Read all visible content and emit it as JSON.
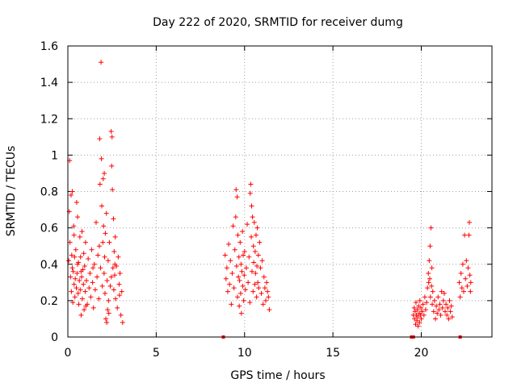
{
  "chart_data": {
    "type": "scatter",
    "title": "Day 222 of 2020, SRMTID for receiver dumg",
    "xlabel": "GPS time / hours",
    "ylabel": "SRMTID / TECUs",
    "xlim": [
      0,
      24
    ],
    "ylim": [
      0,
      1.6
    ],
    "xticks": [
      0,
      5,
      10,
      15,
      20
    ],
    "xtick_labels": [
      "0",
      "5",
      "10",
      "15",
      "20"
    ],
    "yticks": [
      0,
      0.2,
      0.4,
      0.6,
      0.8,
      1,
      1.2,
      1.4,
      1.6
    ],
    "ytick_labels": [
      "0",
      "0.2",
      "0.4",
      "0.6",
      "0.8",
      "1",
      "1.2",
      "1.4",
      "1.6"
    ],
    "grid": true,
    "marker": "+",
    "color": "#ff0000",
    "series": [
      {
        "name": "SRMTID",
        "points": [
          [
            0.05,
            0.42
          ],
          [
            0.08,
            0.69
          ],
          [
            0.1,
            0.97
          ],
          [
            0.12,
            0.52
          ],
          [
            0.15,
            0.33
          ],
          [
            0.18,
            0.78
          ],
          [
            0.2,
            0.25
          ],
          [
            0.22,
            0.45
          ],
          [
            0.25,
            0.38
          ],
          [
            0.28,
            0.19
          ],
          [
            0.3,
            0.36
          ],
          [
            0.33,
            0.61
          ],
          [
            0.35,
            0.29
          ],
          [
            0.38,
            0.44
          ],
          [
            0.4,
            0.22
          ],
          [
            0.42,
            0.32
          ],
          [
            0.45,
            0.48
          ],
          [
            0.48,
            0.27
          ],
          [
            0.5,
            0.74
          ],
          [
            0.52,
            0.35
          ],
          [
            0.55,
            0.66
          ],
          [
            0.58,
            0.24
          ],
          [
            0.6,
            0.41
          ],
          [
            0.62,
            0.18
          ],
          [
            0.65,
            0.31
          ],
          [
            0.68,
            0.55
          ],
          [
            0.7,
            0.26
          ],
          [
            0.72,
            0.44
          ],
          [
            0.75,
            0.12
          ],
          [
            0.78,
            0.33
          ],
          [
            0.8,
            0.58
          ],
          [
            0.82,
            0.21
          ],
          [
            0.85,
            0.37
          ],
          [
            0.88,
            0.29
          ],
          [
            0.9,
            0.46
          ],
          [
            0.92,
            0.15
          ],
          [
            0.95,
            0.39
          ],
          [
            0.98,
            0.25
          ],
          [
            1.0,
            0.52
          ],
          [
            1.05,
            0.31
          ],
          [
            1.1,
            0.18
          ],
          [
            1.15,
            0.43
          ],
          [
            1.2,
            0.27
          ],
          [
            1.25,
            0.35
          ],
          [
            1.3,
            0.22
          ],
          [
            1.35,
            0.48
          ],
          [
            1.4,
            0.3
          ],
          [
            1.45,
            0.16
          ],
          [
            1.5,
            0.4
          ],
          [
            1.55,
            0.26
          ],
          [
            1.6,
            0.63
          ],
          [
            1.65,
            0.33
          ],
          [
            1.7,
            0.45
          ],
          [
            1.75,
            0.21
          ],
          [
            1.8,
            1.09
          ],
          [
            1.82,
            0.84
          ],
          [
            1.85,
            0.38
          ],
          [
            1.88,
            1.51
          ],
          [
            1.9,
            0.98
          ],
          [
            1.92,
            0.72
          ],
          [
            1.95,
            0.28
          ],
          [
            1.98,
            0.52
          ],
          [
            2.0,
            0.87
          ],
          [
            2.02,
            0.61
          ],
          [
            2.05,
            0.35
          ],
          [
            2.08,
            0.44
          ],
          [
            2.1,
            0.24
          ],
          [
            2.12,
            0.57
          ],
          [
            2.15,
            0.1
          ],
          [
            2.18,
            0.68
          ],
          [
            2.2,
            0.08
          ],
          [
            2.22,
            0.31
          ],
          [
            2.25,
            0.15
          ],
          [
            2.28,
            0.42
          ],
          [
            2.3,
            0.2
          ],
          [
            2.35,
            0.52
          ],
          [
            2.4,
            0.28
          ],
          [
            2.45,
            1.13
          ],
          [
            2.48,
            0.94
          ],
          [
            2.5,
            1.1
          ],
          [
            2.52,
            0.81
          ],
          [
            2.55,
            0.38
          ],
          [
            2.58,
            0.65
          ],
          [
            2.6,
            0.26
          ],
          [
            2.62,
            0.47
          ],
          [
            2.65,
            0.34
          ],
          [
            2.68,
            0.55
          ],
          [
            2.7,
            0.21
          ],
          [
            2.75,
            0.39
          ],
          [
            2.8,
            0.16
          ],
          [
            2.85,
            0.44
          ],
          [
            2.9,
            0.29
          ],
          [
            2.95,
            0.35
          ],
          [
            3.0,
            0.12
          ],
          [
            3.05,
            0.25
          ],
          [
            3.1,
            0.08
          ],
          [
            0.25,
            0.8
          ],
          [
            0.35,
            0.56
          ],
          [
            0.55,
            0.4
          ],
          [
            0.75,
            0.36
          ],
          [
            1.02,
            0.17
          ],
          [
            1.42,
            0.38
          ],
          [
            1.78,
            0.5
          ],
          [
            2.06,
            0.9
          ],
          [
            2.32,
            0.13
          ],
          [
            2.46,
            0.33
          ],
          [
            2.66,
            0.4
          ],
          [
            2.92,
            0.23
          ],
          [
            8.9,
            0.45
          ],
          [
            8.95,
            0.32
          ],
          [
            9.0,
            0.38
          ],
          [
            9.05,
            0.25
          ],
          [
            9.1,
            0.51
          ],
          [
            9.15,
            0.29
          ],
          [
            9.2,
            0.42
          ],
          [
            9.25,
            0.18
          ],
          [
            9.3,
            0.35
          ],
          [
            9.35,
            0.61
          ],
          [
            9.4,
            0.27
          ],
          [
            9.45,
            0.48
          ],
          [
            9.5,
            0.66
          ],
          [
            9.52,
            0.81
          ],
          [
            9.55,
            0.39
          ],
          [
            9.58,
            0.77
          ],
          [
            9.6,
            0.22
          ],
          [
            9.62,
            0.56
          ],
          [
            9.65,
            0.33
          ],
          [
            9.68,
            0.44
          ],
          [
            9.7,
            0.17
          ],
          [
            9.72,
            0.31
          ],
          [
            9.75,
            0.52
          ],
          [
            9.78,
            0.24
          ],
          [
            9.8,
            0.4
          ],
          [
            9.82,
            0.13
          ],
          [
            9.85,
            0.36
          ],
          [
            9.88,
            0.58
          ],
          [
            9.9,
            0.28
          ],
          [
            9.92,
            0.45
          ],
          [
            9.95,
            0.2
          ],
          [
            9.98,
            0.34
          ],
          [
            10.0,
            0.47
          ],
          [
            10.05,
            0.26
          ],
          [
            10.1,
            0.38
          ],
          [
            10.15,
            0.62
          ],
          [
            10.2,
            0.3
          ],
          [
            10.25,
            0.44
          ],
          [
            10.3,
            0.19
          ],
          [
            10.32,
            0.79
          ],
          [
            10.35,
            0.84
          ],
          [
            10.38,
            0.55
          ],
          [
            10.4,
            0.72
          ],
          [
            10.42,
            0.36
          ],
          [
            10.45,
            0.66
          ],
          [
            10.48,
            0.25
          ],
          [
            10.5,
            0.5
          ],
          [
            10.52,
            0.41
          ],
          [
            10.55,
            0.63
          ],
          [
            10.58,
            0.29
          ],
          [
            10.6,
            0.47
          ],
          [
            10.62,
            0.35
          ],
          [
            10.65,
            0.56
          ],
          [
            10.68,
            0.22
          ],
          [
            10.7,
            0.39
          ],
          [
            10.72,
            0.6
          ],
          [
            10.75,
            0.3
          ],
          [
            10.78,
            0.45
          ],
          [
            10.8,
            0.27
          ],
          [
            10.85,
            0.52
          ],
          [
            10.9,
            0.38
          ],
          [
            10.95,
            0.24
          ],
          [
            11.0,
            0.42
          ],
          [
            11.05,
            0.18
          ],
          [
            11.1,
            0.33
          ],
          [
            11.15,
            0.27
          ],
          [
            11.2,
            0.2
          ],
          [
            11.25,
            0.3
          ],
          [
            11.3,
            0.25
          ],
          [
            11.35,
            0.22
          ],
          [
            11.4,
            0.15
          ],
          [
            19.55,
            0.12
          ],
          [
            19.6,
            0.16
          ],
          [
            19.62,
            0.1
          ],
          [
            19.65,
            0.14
          ],
          [
            19.68,
            0.07
          ],
          [
            19.7,
            0.19
          ],
          [
            19.72,
            0.12
          ],
          [
            19.75,
            0.09
          ],
          [
            19.78,
            0.15
          ],
          [
            19.8,
            0.11
          ],
          [
            19.82,
            0.06
          ],
          [
            19.85,
            0.17
          ],
          [
            19.88,
            0.13
          ],
          [
            19.9,
            0.08
          ],
          [
            19.92,
            0.2
          ],
          [
            19.95,
            0.12
          ],
          [
            19.98,
            0.16
          ],
          [
            20.0,
            0.1
          ],
          [
            20.05,
            0.14
          ],
          [
            20.1,
            0.18
          ],
          [
            20.15,
            0.12
          ],
          [
            20.2,
            0.22
          ],
          [
            20.25,
            0.15
          ],
          [
            20.3,
            0.19
          ],
          [
            20.35,
            0.27
          ],
          [
            20.4,
            0.35
          ],
          [
            20.42,
            0.3
          ],
          [
            20.45,
            0.42
          ],
          [
            20.48,
            0.32
          ],
          [
            20.5,
            0.5
          ],
          [
            20.52,
            0.22
          ],
          [
            20.55,
            0.6
          ],
          [
            20.58,
            0.28
          ],
          [
            20.6,
            0.38
          ],
          [
            20.62,
            0.18
          ],
          [
            20.65,
            0.25
          ],
          [
            20.7,
            0.14
          ],
          [
            20.75,
            0.2
          ],
          [
            20.8,
            0.1
          ],
          [
            20.85,
            0.17
          ],
          [
            20.9,
            0.13
          ],
          [
            20.95,
            0.22
          ],
          [
            21.0,
            0.15
          ],
          [
            21.05,
            0.18
          ],
          [
            21.1,
            0.12
          ],
          [
            21.15,
            0.25
          ],
          [
            21.2,
            0.16
          ],
          [
            21.25,
            0.2
          ],
          [
            21.3,
            0.24
          ],
          [
            21.35,
            0.14
          ],
          [
            21.4,
            0.18
          ],
          [
            21.45,
            0.12
          ],
          [
            21.5,
            0.16
          ],
          [
            21.55,
            0.1
          ],
          [
            21.6,
            0.2
          ],
          [
            21.65,
            0.14
          ],
          [
            21.7,
            0.17
          ],
          [
            21.75,
            0.11
          ],
          [
            22.15,
            0.3
          ],
          [
            22.2,
            0.22
          ],
          [
            22.25,
            0.35
          ],
          [
            22.3,
            0.27
          ],
          [
            22.35,
            0.4
          ],
          [
            22.4,
            0.25
          ],
          [
            22.45,
            0.56
          ],
          [
            22.5,
            0.32
          ],
          [
            22.55,
            0.42
          ],
          [
            22.6,
            0.28
          ],
          [
            22.65,
            0.38
          ],
          [
            22.7,
            0.56
          ],
          [
            22.72,
            0.63
          ],
          [
            22.75,
            0.34
          ],
          [
            22.78,
            0.25
          ],
          [
            22.8,
            0.3
          ]
        ]
      }
    ],
    "baseline_markers": [
      8.8,
      19.45,
      19.55,
      22.2
    ]
  }
}
